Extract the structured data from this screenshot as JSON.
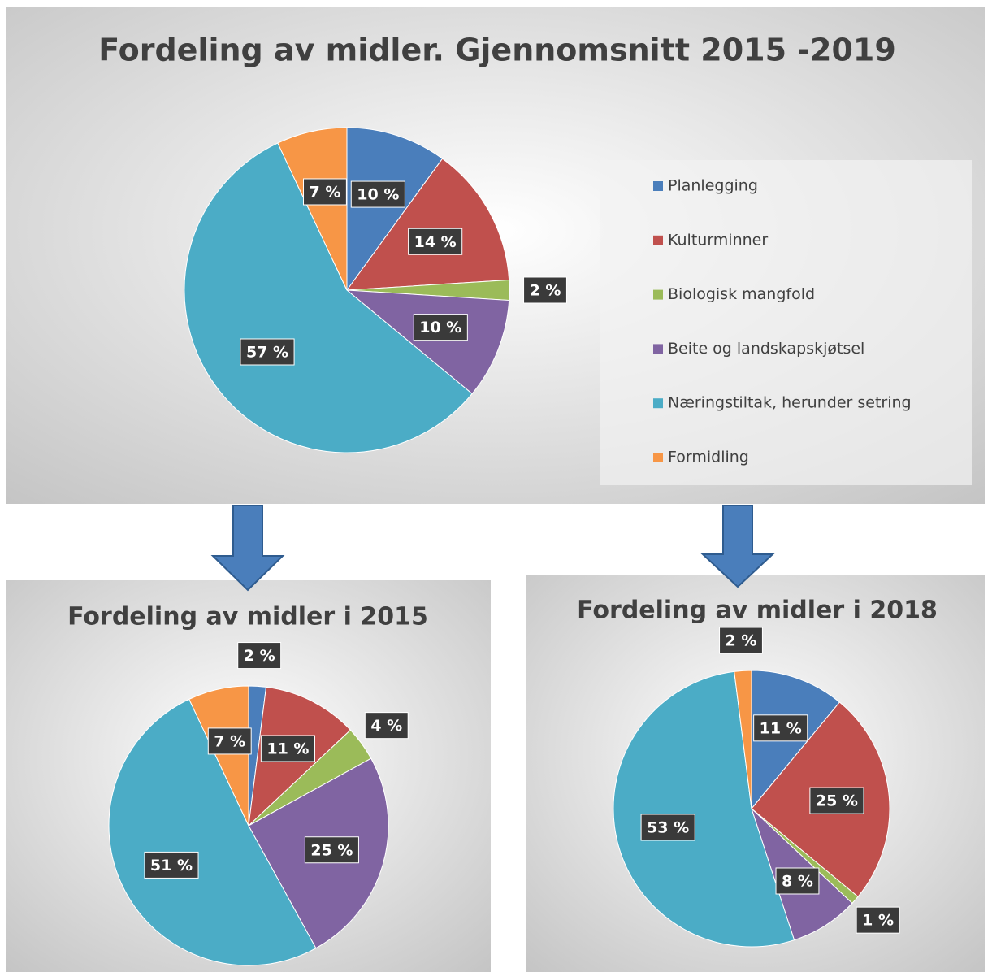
{
  "chart_data": [
    {
      "type": "pie",
      "title": "Fordeling av midler. Gjennomsnitt 2015 -2019",
      "categories": [
        "Planlegging",
        "Kulturminner",
        "Biologisk mangfold",
        "Beite og landskapskjøtsel",
        "Næringstiltak, herunder setring",
        "Formidling"
      ],
      "values": [
        10,
        14,
        2,
        10,
        57,
        7
      ],
      "value_labels": [
        "10 %",
        "14 %",
        "2 %",
        "10 %",
        "57 %",
        "7 %"
      ],
      "colors": [
        "#4a7ebb",
        "#c0504d",
        "#9bbb59",
        "#8064a2",
        "#4bacc6",
        "#f79646"
      ],
      "legend": "right"
    },
    {
      "type": "pie",
      "title": "Fordeling av midler i 2015",
      "values": [
        2,
        11,
        4,
        25,
        51,
        7
      ],
      "value_labels": [
        "2 %",
        "11 %",
        "4 %",
        "25 %",
        "51 %",
        "7 %"
      ],
      "colors": [
        "#4a7ebb",
        "#c0504d",
        "#9bbb59",
        "#8064a2",
        "#4bacc6",
        "#f79646"
      ]
    },
    {
      "type": "pie",
      "title": "Fordeling av midler i 2018",
      "values": [
        11,
        25,
        1,
        8,
        53,
        2
      ],
      "value_labels": [
        "11 %",
        "25 %",
        "1 %",
        "8 %",
        "53 %",
        "2 %"
      ],
      "colors": [
        "#4a7ebb",
        "#c0504d",
        "#9bbb59",
        "#8064a2",
        "#4bacc6",
        "#f79646"
      ]
    }
  ]
}
